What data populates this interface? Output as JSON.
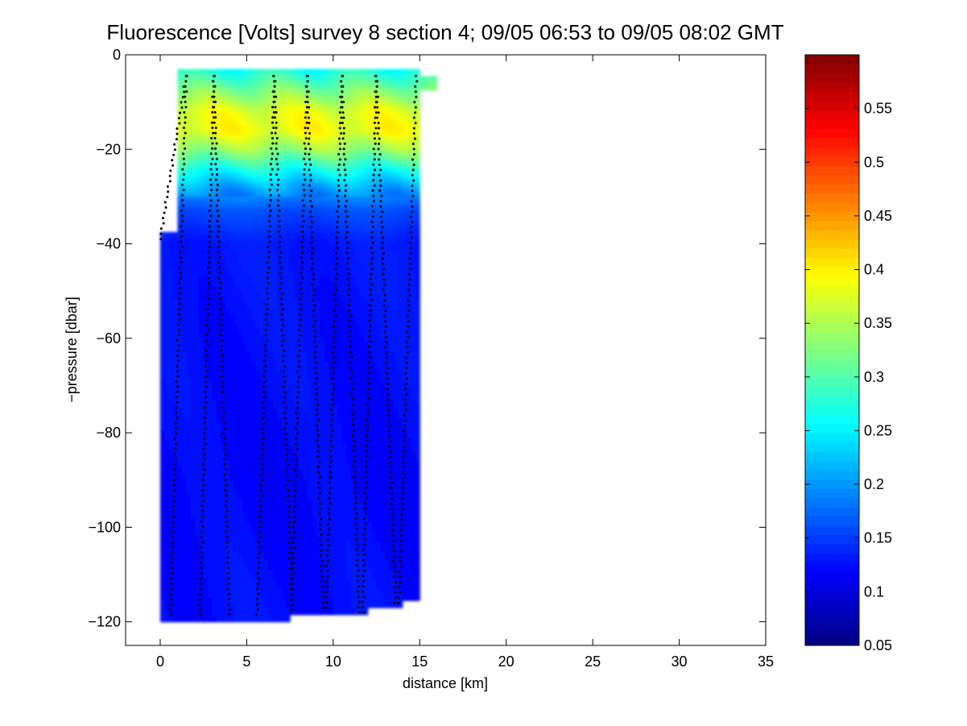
{
  "chart_data": {
    "type": "heatmap",
    "title": "Fluorescence [Volts] survey 8 section 4; 09/05 06:53 to 09/05 08:02 GMT",
    "xlabel": "distance [km]",
    "ylabel": "−pressure [dbar]",
    "xlim": [
      -2,
      35
    ],
    "ylim": [
      -125,
      0
    ],
    "xticks": [
      0,
      5,
      10,
      15,
      20,
      25,
      30,
      35
    ],
    "xtick_labels": [
      "0",
      "5",
      "10",
      "15",
      "20",
      "25",
      "30",
      "35"
    ],
    "yticks": [
      0,
      -20,
      -40,
      -60,
      -80,
      -100,
      -120
    ],
    "ytick_labels": [
      "0",
      "−20",
      "−40",
      "−60",
      "−80",
      "−100",
      "−120"
    ],
    "colorbar": {
      "colormap": "jet",
      "range": [
        0.05,
        0.6
      ],
      "ticks": [
        0.05,
        0.1,
        0.15,
        0.2,
        0.25,
        0.3,
        0.35,
        0.4,
        0.45,
        0.5,
        0.55
      ],
      "tick_labels": [
        "0.05",
        "0.1",
        "0.15",
        "0.2",
        "0.25",
        "0.3",
        "0.35",
        "0.4",
        "0.45",
        "0.5",
        "0.55"
      ]
    },
    "colors": {
      "background": "#ffffff",
      "profile_points": "#000000"
    },
    "field": {
      "columns": [
        {
          "x0": 0.0,
          "x1": 1.0,
          "y_top": -37.5,
          "y_bottom": -120
        },
        {
          "x0": 1.0,
          "x1": 7.5,
          "y_top": -3,
          "y_bottom": -120
        },
        {
          "x0": 7.5,
          "x1": 12.0,
          "y_top": -3,
          "y_bottom": -118.5
        },
        {
          "x0": 12.0,
          "x1": 14.0,
          "y_top": -3,
          "y_bottom": -117
        },
        {
          "x0": 14.0,
          "x1": 15.0,
          "y_top": -3,
          "y_bottom": -115.5
        },
        {
          "x0": 15.0,
          "x1": 16.0,
          "y_top": -4.5,
          "y_bottom": -7.5
        }
      ],
      "profile": [
        {
          "depth": -3,
          "value": 0.265
        },
        {
          "depth": -8,
          "value": 0.33
        },
        {
          "depth": -12,
          "value": 0.38
        },
        {
          "depth": -16,
          "value": 0.39
        },
        {
          "depth": -20,
          "value": 0.34
        },
        {
          "depth": -24,
          "value": 0.27
        },
        {
          "depth": -28,
          "value": 0.21
        },
        {
          "depth": -33,
          "value": 0.16
        },
        {
          "depth": -40,
          "value": 0.13
        },
        {
          "depth": -60,
          "value": 0.125
        },
        {
          "depth": -90,
          "value": 0.12
        },
        {
          "depth": -120,
          "value": 0.125
        }
      ]
    },
    "profiles": [
      {
        "x_top": 1.5,
        "x_bottom": 0.0,
        "y_top": -4.5,
        "y_bottom": -39,
        "direction": "up"
      },
      {
        "x_top": 1.5,
        "x_bottom": 0.6,
        "y_top": -4.5,
        "y_bottom": -118.5,
        "direction": "down"
      },
      {
        "x_top": 3.1,
        "x_bottom": 2.3,
        "y_top": -4.5,
        "y_bottom": -118.5,
        "direction": "up"
      },
      {
        "x_top": 3.1,
        "x_bottom": 4.0,
        "y_top": -4.5,
        "y_bottom": -118.5,
        "direction": "down"
      },
      {
        "x_top": 6.6,
        "x_bottom": 5.6,
        "y_top": -4.5,
        "y_bottom": -118.5,
        "direction": "up"
      },
      {
        "x_top": 6.6,
        "x_bottom": 7.6,
        "y_top": -4.5,
        "y_bottom": -117.5,
        "direction": "down"
      },
      {
        "x_top": 8.5,
        "x_bottom": 7.6,
        "y_top": -4.5,
        "y_bottom": -117.5,
        "direction": "up"
      },
      {
        "x_top": 8.5,
        "x_bottom": 9.4,
        "y_top": -4.5,
        "y_bottom": -117,
        "direction": "down"
      },
      {
        "x_top": 10.5,
        "x_bottom": 9.6,
        "y_top": -4.5,
        "y_bottom": -117,
        "direction": "up"
      },
      {
        "x_top": 10.5,
        "x_bottom": 11.5,
        "y_top": -4.5,
        "y_bottom": -118,
        "direction": "down"
      },
      {
        "x_top": 12.5,
        "x_bottom": 11.7,
        "y_top": -4.5,
        "y_bottom": -118,
        "direction": "up"
      },
      {
        "x_top": 12.5,
        "x_bottom": 13.6,
        "y_top": -4.5,
        "y_bottom": -116,
        "direction": "down"
      },
      {
        "x_top": 14.8,
        "x_bottom": 13.8,
        "y_top": -4.5,
        "y_bottom": -116,
        "direction": "up"
      }
    ]
  }
}
